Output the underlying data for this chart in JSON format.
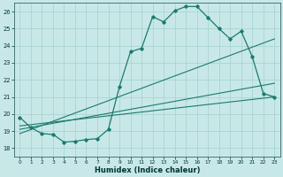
{
  "title": "",
  "xlabel": "Humidex (Indice chaleur)",
  "ylabel": "",
  "bg_color": "#c8e8e8",
  "line_color": "#1a7a6e",
  "grid_color": "#aad4d0",
  "xlim": [
    -0.5,
    23.5
  ],
  "ylim": [
    17.5,
    26.5
  ],
  "xticks": [
    0,
    1,
    2,
    3,
    4,
    5,
    6,
    7,
    8,
    9,
    10,
    11,
    12,
    13,
    14,
    15,
    16,
    17,
    18,
    19,
    20,
    21,
    22,
    23
  ],
  "yticks": [
    18,
    19,
    20,
    21,
    22,
    23,
    24,
    25,
    26
  ],
  "curve_x": [
    0,
    1,
    2,
    3,
    4,
    5,
    6,
    7,
    8,
    9,
    10,
    11,
    12,
    13,
    14,
    15,
    16,
    17,
    18,
    19,
    20,
    21,
    22,
    23
  ],
  "curve_y": [
    19.8,
    19.2,
    18.85,
    18.8,
    18.35,
    18.4,
    18.5,
    18.55,
    19.1,
    21.6,
    23.65,
    23.85,
    25.7,
    25.4,
    26.05,
    26.3,
    26.3,
    25.65,
    25.0,
    24.4,
    24.85,
    23.35,
    21.2,
    21.0
  ],
  "line1_x": [
    0,
    23
  ],
  "line1_y": [
    18.85,
    24.4
  ],
  "line2_x": [
    0,
    23
  ],
  "line2_y": [
    19.1,
    21.8
  ],
  "line3_x": [
    0,
    23
  ],
  "line3_y": [
    19.3,
    21.0
  ]
}
